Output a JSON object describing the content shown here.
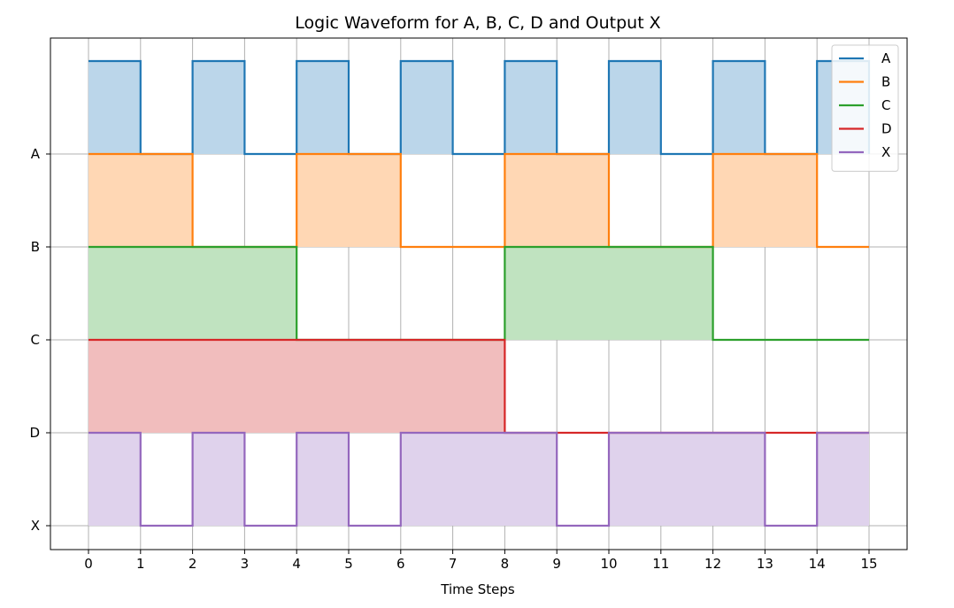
{
  "chart_data": {
    "type": "line",
    "title": "Logic Waveform for A, B, C, D and Output X",
    "xlabel": "Time Steps",
    "ylabel": "",
    "x_ticks": [
      0,
      1,
      2,
      3,
      4,
      5,
      6,
      7,
      8,
      9,
      10,
      11,
      12,
      13,
      14,
      15
    ],
    "xlim": [
      -0.75,
      15.75
    ],
    "y_ticks": [
      "A",
      "B",
      "C",
      "D",
      "X"
    ],
    "grid": true,
    "step": "post",
    "legend_position": "top-right",
    "series": [
      {
        "name": "A",
        "color": "#1f77b4",
        "fill": "#bbd6ea",
        "values": [
          1,
          0,
          1,
          0,
          1,
          0,
          1,
          0,
          1,
          0,
          1,
          0,
          1,
          0,
          1,
          0
        ]
      },
      {
        "name": "B",
        "color": "#ff7f0e",
        "fill": "#ffd7b4",
        "values": [
          1,
          1,
          0,
          0,
          1,
          1,
          0,
          0,
          1,
          1,
          0,
          0,
          1,
          1,
          0,
          0
        ]
      },
      {
        "name": "C",
        "color": "#2ca02c",
        "fill": "#c0e3c0",
        "values": [
          1,
          1,
          1,
          1,
          0,
          0,
          0,
          0,
          1,
          1,
          1,
          1,
          0,
          0,
          0,
          0
        ]
      },
      {
        "name": "D",
        "color": "#d62728",
        "fill": "#f1bdbd",
        "values": [
          1,
          1,
          1,
          1,
          1,
          1,
          1,
          1,
          0,
          0,
          0,
          0,
          0,
          0,
          0,
          0
        ]
      },
      {
        "name": "X",
        "color": "#9467bd",
        "fill": "#dfd2ec",
        "values": [
          1,
          0,
          1,
          0,
          1,
          0,
          1,
          1,
          1,
          0,
          1,
          1,
          1,
          0,
          1,
          1
        ]
      }
    ]
  }
}
